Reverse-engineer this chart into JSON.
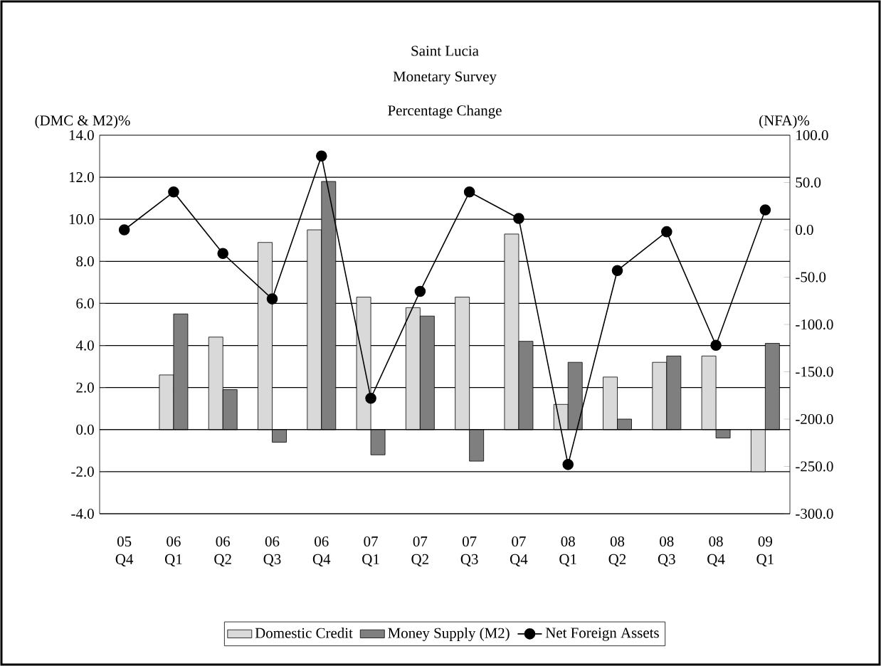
{
  "chart_data": {
    "type": "bar",
    "title": "Saint Lucia",
    "subtitle": "Monetary Survey Percentage Change",
    "ylabel": "(DMC & M2)%",
    "y2label": "(NFA)%",
    "categories": [
      "05 Q4",
      "06 Q1",
      "06 Q2",
      "06 Q3",
      "06 Q4",
      "07 Q1",
      "07 Q2",
      "07 Q3",
      "07 Q4",
      "08 Q1",
      "08 Q2",
      "08 Q3",
      "08 Q4",
      "09 Q1"
    ],
    "series": [
      {
        "name": "Domestic Credit",
        "color": "#d9d9d9",
        "values": [
          null,
          2.6,
          4.4,
          8.9,
          9.5,
          6.3,
          5.8,
          6.3,
          9.3,
          1.2,
          2.5,
          3.2,
          3.5,
          -2.0
        ]
      },
      {
        "name": "Money Supply (M2)",
        "color": "#7f7f7f",
        "values": [
          null,
          5.5,
          1.9,
          -0.6,
          11.8,
          -1.2,
          5.4,
          -1.5,
          4.2,
          3.2,
          0.5,
          3.5,
          -0.4,
          4.1
        ]
      },
      {
        "name": "Net Foreign Assets",
        "color": "#000000",
        "type": "line",
        "axis": "y2",
        "values": [
          0,
          40,
          -25,
          -73,
          78,
          -178,
          -65,
          40,
          12,
          -248,
          -43,
          -2,
          -122,
          21
        ]
      }
    ],
    "ylim": [
      -4,
      14
    ],
    "yticks": [
      {
        "value": -4,
        "label": "-4.0"
      },
      {
        "value": -2,
        "label": "-2.0"
      },
      {
        "value": 0,
        "label": "0.0"
      },
      {
        "value": 2,
        "label": "2.0"
      },
      {
        "value": 4,
        "label": "4.0"
      },
      {
        "value": 6,
        "label": "6.0"
      },
      {
        "value": 8,
        "label": "8.0"
      },
      {
        "value": 10,
        "label": "10.0"
      },
      {
        "value": 12,
        "label": "12.0"
      },
      {
        "value": 14,
        "label": "14.0"
      }
    ],
    "y2lim": [
      -300,
      100
    ],
    "y2ticks": [
      {
        "value": -300,
        "label": "-300.0"
      },
      {
        "value": -250,
        "label": "-250.0"
      },
      {
        "value": -200,
        "label": "-200.0"
      },
      {
        "value": -150,
        "label": "-150.0"
      },
      {
        "value": -100,
        "label": "-100.0"
      },
      {
        "value": -50,
        "label": "-50.0"
      },
      {
        "value": 0,
        "label": "0.0"
      },
      {
        "value": 50,
        "label": "50.0"
      },
      {
        "value": 100,
        "label": "100.0"
      }
    ],
    "grid": "y",
    "legend": "bottom",
    "marker": "circle",
    "line_style": "solid"
  }
}
